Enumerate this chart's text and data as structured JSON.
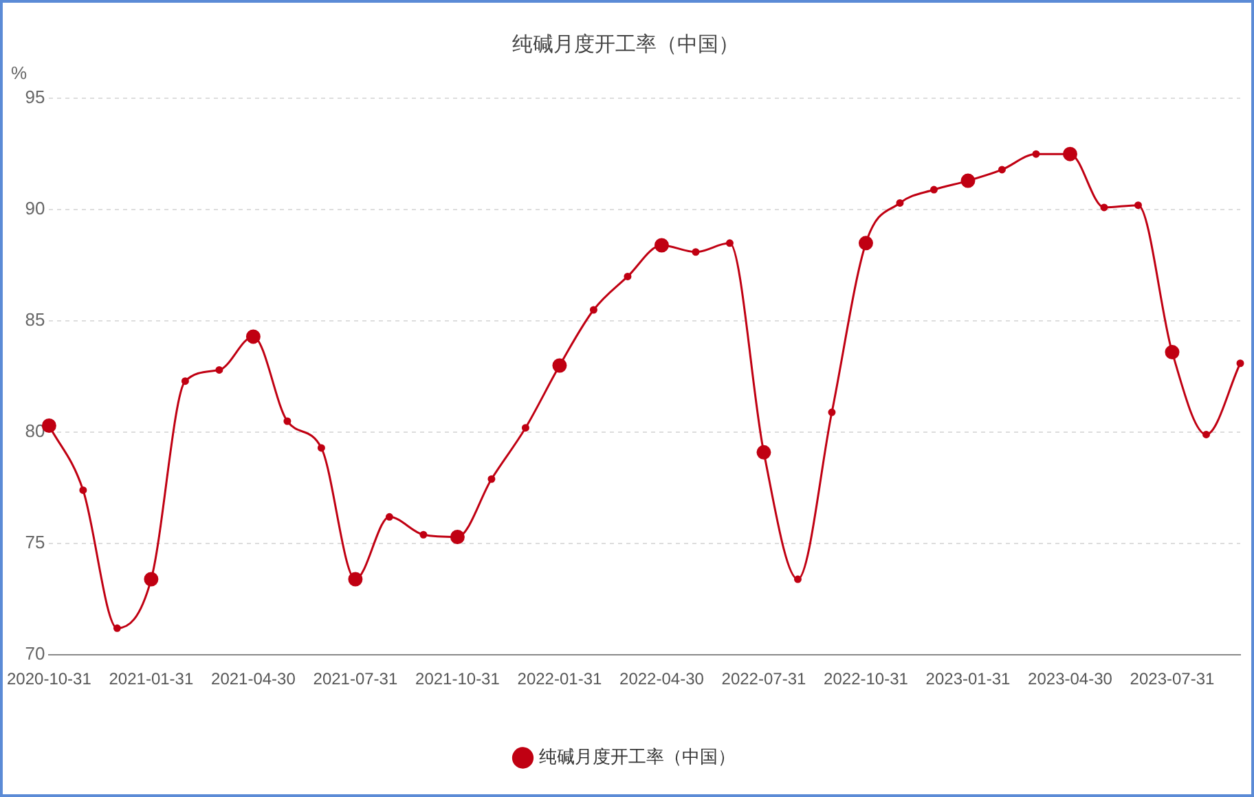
{
  "chart_data": {
    "type": "line",
    "title": "纯碱月度开工率（中国）",
    "ylabel": "%",
    "categories": [
      "2020-10-31",
      null,
      null,
      "2021-01-31",
      null,
      null,
      "2021-04-30",
      null,
      null,
      "2021-07-31",
      null,
      null,
      "2021-10-31",
      null,
      null,
      "2022-01-31",
      null,
      null,
      "2022-04-30",
      null,
      null,
      "2022-07-31",
      null,
      null,
      "2022-10-31",
      null,
      null,
      "2023-01-31",
      null,
      null,
      "2023-04-30",
      null,
      null,
      "2023-07-31",
      null,
      null
    ],
    "series": [
      {
        "name": "纯碱月度开工率（中国）",
        "color": "#c00012",
        "values": [
          80.3,
          77.4,
          71.2,
          73.4,
          82.3,
          82.8,
          84.3,
          80.5,
          79.3,
          73.4,
          76.2,
          75.4,
          75.3,
          77.9,
          80.2,
          83.0,
          85.5,
          87.0,
          88.4,
          88.1,
          88.5,
          79.1,
          73.4,
          80.9,
          88.5,
          90.3,
          90.9,
          91.3,
          91.8,
          92.5,
          92.5,
          90.1,
          90.2,
          83.6,
          79.9,
          83.1
        ]
      }
    ],
    "ylim": [
      70,
      95
    ],
    "yticks": [
      70,
      75,
      80,
      85,
      90,
      95
    ],
    "grid": "y",
    "legend": "bottom",
    "marker": "circle",
    "line_style": "solid"
  }
}
